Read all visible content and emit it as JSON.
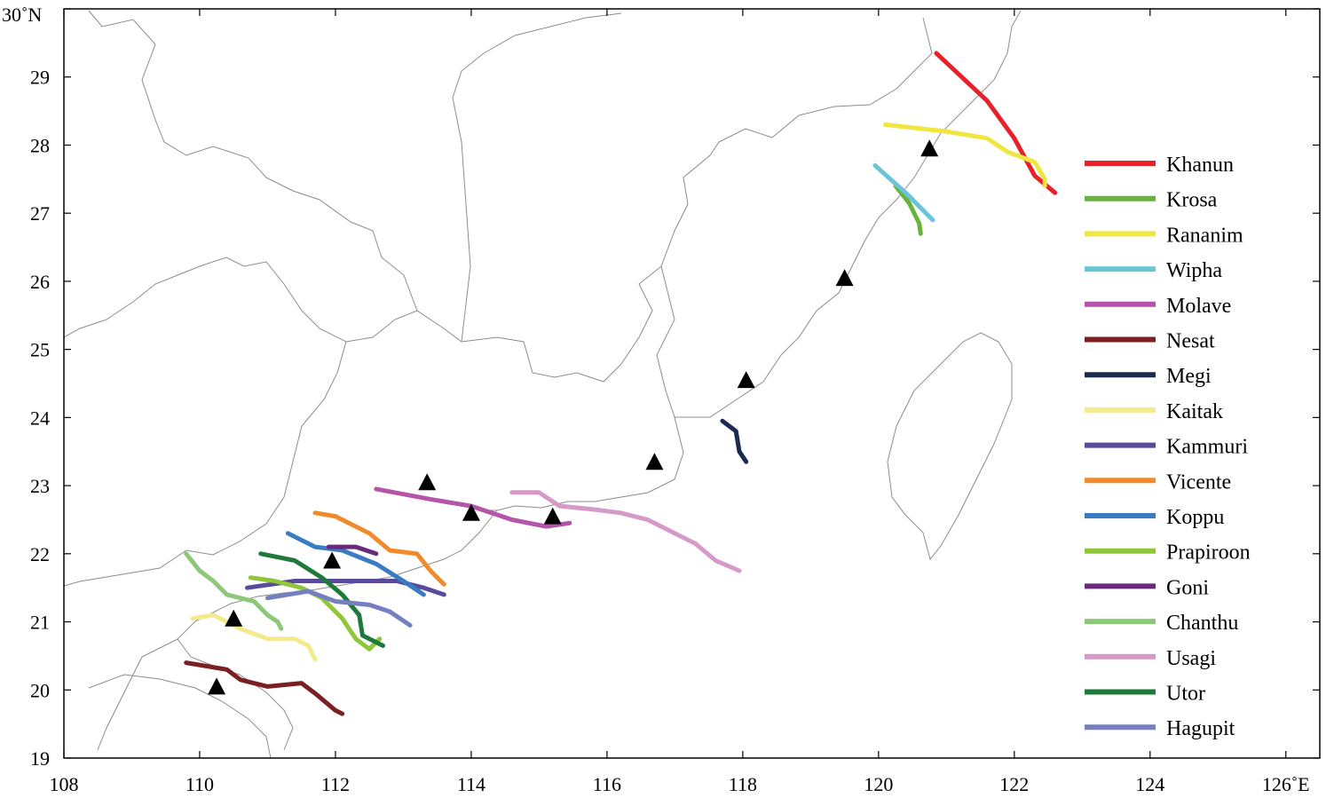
{
  "map": {
    "x_ticks": [
      {
        "value": 108,
        "label": "108"
      },
      {
        "value": 110,
        "label": "110"
      },
      {
        "value": 112,
        "label": "112"
      },
      {
        "value": 114,
        "label": "114"
      },
      {
        "value": 116,
        "label": "116"
      },
      {
        "value": 118,
        "label": "118"
      },
      {
        "value": 120,
        "label": "120"
      },
      {
        "value": 122,
        "label": "122"
      },
      {
        "value": 124,
        "label": "124"
      },
      {
        "value": 126,
        "label": "126˚E"
      }
    ],
    "y_ticks": [
      {
        "value": 19,
        "label": "19"
      },
      {
        "value": 20,
        "label": "20"
      },
      {
        "value": 21,
        "label": "21"
      },
      {
        "value": 22,
        "label": "22"
      },
      {
        "value": 23,
        "label": "23"
      },
      {
        "value": 24,
        "label": "24"
      },
      {
        "value": 25,
        "label": "25"
      },
      {
        "value": 26,
        "label": "26"
      },
      {
        "value": 27,
        "label": "27"
      },
      {
        "value": 28,
        "label": "28"
      },
      {
        "value": 29,
        "label": "29"
      },
      {
        "value": 30,
        "label": "30˚N"
      }
    ],
    "xlim": [
      108,
      126.5
    ],
    "ylim": [
      19,
      30
    ],
    "stations": [
      [
        110.25,
        20.05
      ],
      [
        110.5,
        21.05
      ],
      [
        111.95,
        21.9
      ],
      [
        113.35,
        23.05
      ],
      [
        114.0,
        22.6
      ],
      [
        115.2,
        22.55
      ],
      [
        116.7,
        23.35
      ],
      [
        118.05,
        24.55
      ],
      [
        119.5,
        26.05
      ],
      [
        120.75,
        27.95
      ]
    ],
    "tracks": [
      {
        "name": "Khanun",
        "color": "#e8202a",
        "points": [
          [
            120.85,
            29.35
          ],
          [
            121.6,
            28.65
          ],
          [
            122.0,
            28.1
          ],
          [
            122.3,
            27.55
          ],
          [
            122.6,
            27.3
          ]
        ]
      },
      {
        "name": "Krosa",
        "color": "#6ab23e",
        "points": [
          [
            120.25,
            27.4
          ],
          [
            120.45,
            27.15
          ],
          [
            120.6,
            26.85
          ],
          [
            120.62,
            26.7
          ]
        ]
      },
      {
        "name": "Rananim",
        "color": "#f0e640",
        "points": [
          [
            120.1,
            28.3
          ],
          [
            121.0,
            28.2
          ],
          [
            121.6,
            28.1
          ],
          [
            121.9,
            27.9
          ],
          [
            122.3,
            27.75
          ],
          [
            122.45,
            27.5
          ],
          [
            122.45,
            27.4
          ]
        ]
      },
      {
        "name": "Wipha",
        "color": "#6cc4d4",
        "points": [
          [
            119.95,
            27.7
          ],
          [
            120.4,
            27.3
          ],
          [
            120.8,
            26.9
          ]
        ]
      },
      {
        "name": "Molave",
        "color": "#b455a9",
        "points": [
          [
            112.6,
            22.95
          ],
          [
            113.4,
            22.8
          ],
          [
            114.0,
            22.7
          ],
          [
            114.6,
            22.5
          ],
          [
            115.1,
            22.4
          ],
          [
            115.45,
            22.45
          ]
        ]
      },
      {
        "name": "Nesat",
        "color": "#7a1f22",
        "points": [
          [
            109.8,
            20.4
          ],
          [
            110.4,
            20.3
          ],
          [
            110.6,
            20.15
          ],
          [
            111.0,
            20.05
          ],
          [
            111.5,
            20.1
          ],
          [
            111.7,
            19.95
          ],
          [
            112.0,
            19.7
          ],
          [
            112.1,
            19.65
          ]
        ]
      },
      {
        "name": "Megi",
        "color": "#1c2a52",
        "points": [
          [
            117.7,
            23.95
          ],
          [
            117.9,
            23.8
          ],
          [
            117.95,
            23.5
          ],
          [
            118.05,
            23.35
          ]
        ]
      },
      {
        "name": "Kaitak",
        "color": "#f2ea8c",
        "points": [
          [
            109.9,
            21.05
          ],
          [
            110.2,
            21.1
          ],
          [
            110.6,
            20.9
          ],
          [
            111.0,
            20.75
          ],
          [
            111.4,
            20.75
          ],
          [
            111.6,
            20.65
          ],
          [
            111.7,
            20.45
          ]
        ]
      },
      {
        "name": "Kammuri",
        "color": "#5a4a9c",
        "points": [
          [
            110.7,
            21.5
          ],
          [
            111.4,
            21.6
          ],
          [
            112.4,
            21.6
          ],
          [
            112.9,
            21.6
          ],
          [
            113.3,
            21.5
          ],
          [
            113.6,
            21.4
          ]
        ]
      },
      {
        "name": "Vicente",
        "color": "#f08a2a",
        "points": [
          [
            111.7,
            22.6
          ],
          [
            112.0,
            22.55
          ],
          [
            112.5,
            22.3
          ],
          [
            112.8,
            22.05
          ],
          [
            113.2,
            22.0
          ],
          [
            113.4,
            21.75
          ],
          [
            113.6,
            21.55
          ]
        ]
      },
      {
        "name": "Koppu",
        "color": "#3a7cc4",
        "points": [
          [
            111.3,
            22.3
          ],
          [
            111.7,
            22.1
          ],
          [
            112.1,
            22.05
          ],
          [
            112.6,
            21.85
          ],
          [
            113.0,
            21.6
          ],
          [
            113.3,
            21.4
          ]
        ]
      },
      {
        "name": "Prapiroon",
        "color": "#8fc63a",
        "points": [
          [
            110.75,
            21.65
          ],
          [
            111.1,
            21.6
          ],
          [
            111.5,
            21.5
          ],
          [
            111.8,
            21.35
          ],
          [
            112.1,
            21.05
          ],
          [
            112.3,
            20.75
          ],
          [
            112.5,
            20.6
          ],
          [
            112.65,
            20.75
          ]
        ]
      },
      {
        "name": "Goni",
        "color": "#6a2a7a",
        "points": [
          [
            111.9,
            22.1
          ],
          [
            112.3,
            22.1
          ],
          [
            112.6,
            22.0
          ]
        ]
      },
      {
        "name": "Chanthu",
        "color": "#8cc878",
        "points": [
          [
            109.8,
            22.0
          ],
          [
            110.0,
            21.75
          ],
          [
            110.2,
            21.6
          ],
          [
            110.4,
            21.4
          ],
          [
            110.8,
            21.3
          ],
          [
            111.0,
            21.1
          ],
          [
            111.15,
            21.0
          ],
          [
            111.2,
            20.9
          ]
        ]
      },
      {
        "name": "Usagi",
        "color": "#d59ac8",
        "points": [
          [
            114.6,
            22.9
          ],
          [
            115.0,
            22.9
          ],
          [
            115.3,
            22.7
          ],
          [
            115.8,
            22.65
          ],
          [
            116.2,
            22.6
          ],
          [
            116.6,
            22.5
          ],
          [
            116.9,
            22.35
          ],
          [
            117.3,
            22.15
          ],
          [
            117.6,
            21.9
          ],
          [
            117.95,
            21.75
          ]
        ]
      },
      {
        "name": "Utor",
        "color": "#1e7a3a",
        "points": [
          [
            110.9,
            22.0
          ],
          [
            111.4,
            21.9
          ],
          [
            111.8,
            21.65
          ],
          [
            112.1,
            21.4
          ],
          [
            112.35,
            21.1
          ],
          [
            112.4,
            20.8
          ],
          [
            112.7,
            20.65
          ]
        ]
      },
      {
        "name": "Hagupit",
        "color": "#7480c0",
        "points": [
          [
            111.0,
            21.35
          ],
          [
            111.6,
            21.45
          ],
          [
            112.0,
            21.3
          ],
          [
            112.5,
            21.25
          ],
          [
            112.8,
            21.15
          ],
          [
            113.1,
            20.95
          ]
        ]
      }
    ]
  }
}
